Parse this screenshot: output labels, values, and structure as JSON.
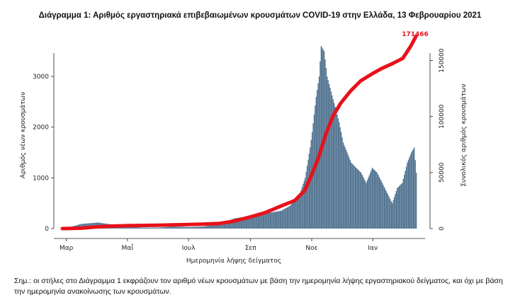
{
  "title": "Διάγραμμα 1: Αριθμός εργαστηριακά επιβεβαιωμένων κρουσμάτων COVID-19 στην Ελλάδα, 13 Φεβρουαρίου 2021",
  "footnote": "Σημ.: οι στήλες στο Διάγραμμα 1 εκφράζουν τον αριθμό νέων κρουσμάτων με βάση την ημερομηνία λήψης εργαστηριακού δείγματος, και όχι με βάση την ημερομηνία ανακοίνωσης των κρουσμάτων.",
  "colors": {
    "bars": "#4a6d8c",
    "cumulative_line": "#e8111a",
    "axis": "#222222"
  },
  "chart_data": {
    "type": "bar",
    "xlabel": "Ημερομηνία λήψης δείγματος",
    "ylabel": "Αριθμός νέων κρουσμάτων",
    "y2label": "Συνολικός αριθμός κρουσμάτων",
    "x_ticks": [
      "Μαρ",
      "Μαΐ",
      "Ιουλ",
      "Σεπ",
      "Νοε",
      "Ιαν"
    ],
    "ylim": [
      0,
      3600
    ],
    "yticks": [
      0,
      1000,
      2000,
      3000
    ],
    "y2lim": [
      0,
      163000
    ],
    "y2ticks": [
      0,
      50000,
      100000,
      150000
    ],
    "grid": false,
    "legend": "none",
    "end_label": "171466",
    "series": [
      {
        "axis": "left",
        "type": "bar",
        "points": [
          [
            "2020-03-01",
            10
          ],
          [
            "2020-03-15",
            90
          ],
          [
            "2020-04-01",
            120
          ],
          [
            "2020-04-15",
            80
          ],
          [
            "2020-05-01",
            40
          ],
          [
            "2020-05-15",
            20
          ],
          [
            "2020-06-01",
            20
          ],
          [
            "2020-06-15",
            40
          ],
          [
            "2020-07-01",
            30
          ],
          [
            "2020-07-15",
            40
          ],
          [
            "2020-08-01",
            90
          ],
          [
            "2020-08-15",
            200
          ],
          [
            "2020-09-01",
            250
          ],
          [
            "2020-09-15",
            300
          ],
          [
            "2020-10-01",
            350
          ],
          [
            "2020-10-10",
            450
          ],
          [
            "2020-10-20",
            700
          ],
          [
            "2020-10-25",
            1000
          ],
          [
            "2020-10-30",
            1600
          ],
          [
            "2020-11-01",
            1900
          ],
          [
            "2020-11-05",
            2600
          ],
          [
            "2020-11-08",
            3000
          ],
          [
            "2020-11-10",
            3600
          ],
          [
            "2020-11-13",
            3500
          ],
          [
            "2020-11-16",
            3000
          ],
          [
            "2020-11-20",
            2700
          ],
          [
            "2020-11-24",
            2400
          ],
          [
            "2020-11-28",
            2100
          ],
          [
            "2020-12-02",
            1700
          ],
          [
            "2020-12-06",
            1500
          ],
          [
            "2020-12-10",
            1300
          ],
          [
            "2020-12-15",
            1200
          ],
          [
            "2020-12-20",
            1100
          ],
          [
            "2020-12-25",
            900
          ],
          [
            "2020-12-31",
            1200
          ],
          [
            "2021-01-05",
            1100
          ],
          [
            "2021-01-10",
            900
          ],
          [
            "2021-01-15",
            700
          ],
          [
            "2021-01-20",
            500
          ],
          [
            "2021-01-25",
            800
          ],
          [
            "2021-01-30",
            900
          ],
          [
            "2021-02-04",
            1300
          ],
          [
            "2021-02-08",
            1500
          ],
          [
            "2021-02-11",
            1600
          ],
          [
            "2021-02-13",
            1100
          ]
        ]
      },
      {
        "axis": "right",
        "type": "line",
        "points": [
          [
            "2020-02-26",
            0
          ],
          [
            "2020-03-15",
            300
          ],
          [
            "2020-04-01",
            1500
          ],
          [
            "2020-04-15",
            2200
          ],
          [
            "2020-05-01",
            2600
          ],
          [
            "2020-06-01",
            3000
          ],
          [
            "2020-07-01",
            3600
          ],
          [
            "2020-07-15",
            3900
          ],
          [
            "2020-08-01",
            4600
          ],
          [
            "2020-08-15",
            6500
          ],
          [
            "2020-09-01",
            10500
          ],
          [
            "2020-09-15",
            14000
          ],
          [
            "2020-10-01",
            20000
          ],
          [
            "2020-10-15",
            25000
          ],
          [
            "2020-10-25",
            34000
          ],
          [
            "2020-11-01",
            48000
          ],
          [
            "2020-11-08",
            64000
          ],
          [
            "2020-11-15",
            84000
          ],
          [
            "2020-11-22",
            100000
          ],
          [
            "2020-11-30",
            112000
          ],
          [
            "2020-12-10",
            123000
          ],
          [
            "2020-12-20",
            132000
          ],
          [
            "2020-12-31",
            138000
          ],
          [
            "2021-01-10",
            143000
          ],
          [
            "2021-01-20",
            147000
          ],
          [
            "2021-01-31",
            152000
          ],
          [
            "2021-02-08",
            163000
          ],
          [
            "2021-02-13",
            171466
          ]
        ]
      }
    ]
  }
}
